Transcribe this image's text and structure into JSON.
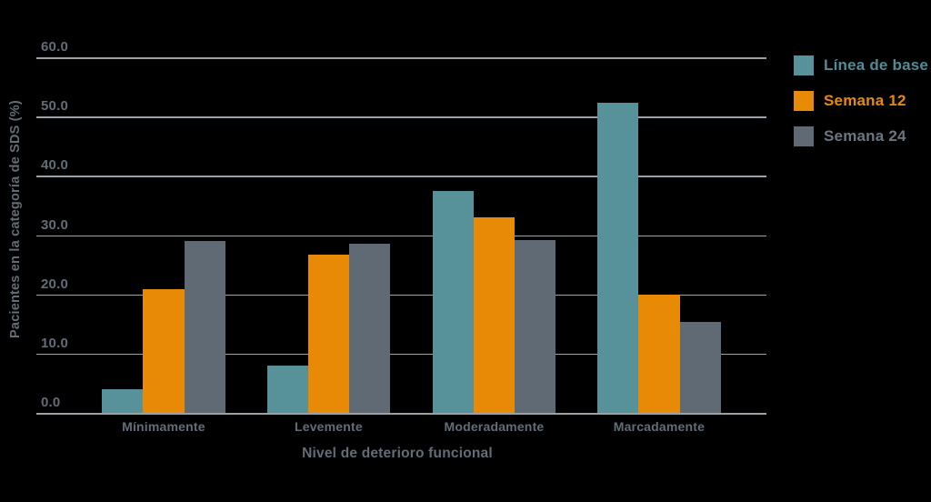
{
  "chart_data": {
    "type": "bar",
    "title": "",
    "categories": [
      "Mínimamente",
      "Levemente",
      "Moderadamente",
      "Marcadamente"
    ],
    "series": [
      {
        "name": "Línea de base",
        "color": "#579199",
        "label_color": "#4e8c96",
        "values": [
          4.0,
          8.0,
          37.5,
          52.3
        ]
      },
      {
        "name": "Semana 12",
        "color": "#e88a06",
        "label_color": "#e88a06",
        "values": [
          20.9,
          26.7,
          33.0,
          19.9
        ]
      },
      {
        "name": "Semana 24",
        "color": "#5f6a74",
        "label_color": "#6b7681",
        "values": [
          29.0,
          28.5,
          29.1,
          15.4
        ]
      }
    ],
    "xlabel": "Nivel de deterioro funcional",
    "ylabel": "Pacientes en la categoría de SDS (%)",
    "ylim": [
      0,
      60
    ],
    "ytick_step": 10,
    "ytick_labels": [
      "0.0",
      "10.0",
      "20.0",
      "30.0",
      "40.0",
      "50.0",
      "60.0"
    ],
    "grid": true,
    "legend_position": "right"
  },
  "colors": {
    "background": "#000000",
    "gridline": "#9aa2a8",
    "axis_text": "#626d77"
  }
}
